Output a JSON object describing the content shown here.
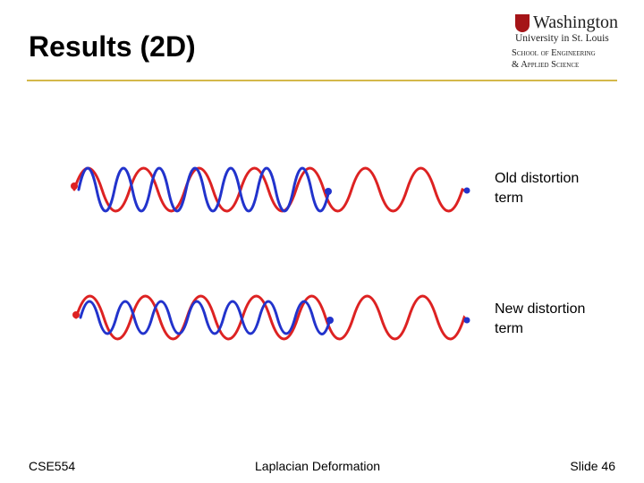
{
  "header": {
    "title": "Results (2D)",
    "logo": {
      "name": "Washington",
      "university": "University in St. Louis",
      "school_line_1": "School of Engineering",
      "school_line_2": "& Applied Science"
    }
  },
  "figures": [
    {
      "label": "Old distortion term"
    },
    {
      "label": "New distortion term"
    }
  ],
  "footer": {
    "course": "CSE554",
    "topic": "Laplacian Deformation",
    "slide": "Slide 46"
  }
}
